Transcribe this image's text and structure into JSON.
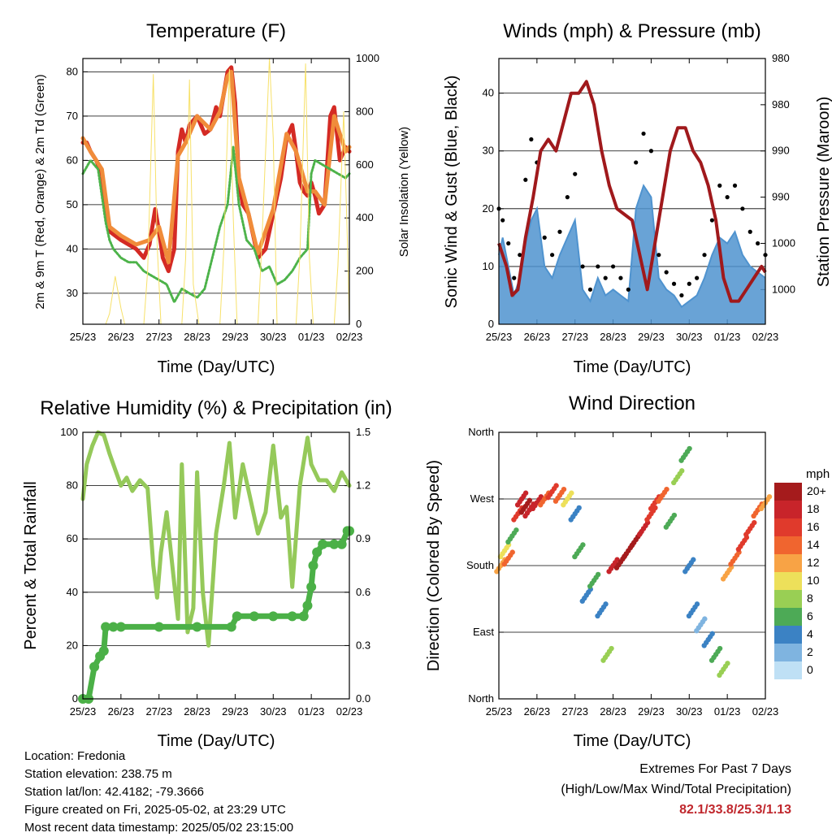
{
  "panels": {
    "temperature": {
      "title": "Temperature (F)",
      "xlabel": "Time (Day/UTC)",
      "ylabel_left": "2m & 9m T (Red, Orange) & 2m Td (Green)",
      "ylabel_right": "Solar Insolation (Yellow)"
    },
    "wind": {
      "title": "Winds (mph) & Pressure (mb)",
      "xlabel": "Time (Day/UTC)",
      "ylabel_left": "Sonic Wind & Gust (Blue, Black)",
      "ylabel_right": "Station Pressure (Maroon)"
    },
    "rh": {
      "title": "Relative Humidity (%) & Precipitation (in)",
      "xlabel": "Time (Day/UTC)",
      "ylabel_left": "Percent & Total Rainfall"
    },
    "wdir": {
      "title": "Wind Direction",
      "xlabel": "Time (Day/UTC)",
      "ylabel_left": "Direction (Colored By Speed)",
      "colorbar_title": "mph"
    }
  },
  "info": {
    "location": "Location: Fredonia",
    "elevation": "Station elevation: 238.75 m",
    "latlon": "Station lat/lon: 42.4182; -79.3666",
    "created": "Figure created on Fri, 2025-05-02, at 23:29 UTC",
    "recent": "Most recent data timestamp: 2025/05/02 23:15:00",
    "extremes_title": "Extremes For Past 7 Days",
    "extremes_subtitle": "(High/Low/Max Wind/Total Precipitation)",
    "extremes_values": "82.1/33.8/25.3/1.13"
  },
  "colors": {
    "temp_2m": "#d42a24",
    "temp_9m": "#f08c3a",
    "dewpoint": "#4db34a",
    "solar": "#f7e16a",
    "sonic_wind": "#4f93cf",
    "gust": "#000000",
    "pressure": "#a0191c",
    "rh": "#95c95a",
    "precip": "#4bb047",
    "extremes": "#c0272d"
  },
  "chart_data": [
    {
      "type": "line",
      "title": "Temperature (F)",
      "xlabel": "Time (Day/UTC)",
      "ylabel": "2m & 9m T (Red, Orange) & 2m Td (Green)",
      "y2label": "Solar Insolation (Yellow)",
      "x_ticks": [
        "25/23",
        "26/23",
        "27/23",
        "28/23",
        "29/23",
        "30/23",
        "01/23",
        "02/23"
      ],
      "xlim": [
        0,
        7
      ],
      "ylim": [
        23,
        83
      ],
      "y_ticks": [
        30,
        40,
        50,
        60,
        70,
        80
      ],
      "y2lim": [
        0,
        1000
      ],
      "y2_ticks": [
        0,
        200,
        400,
        600,
        800,
        1000
      ],
      "grid": true,
      "series": [
        {
          "name": "2m T",
          "color": "#d42a24",
          "x": [
            0,
            0.1,
            0.2,
            0.35,
            0.5,
            0.6,
            0.7,
            0.85,
            1,
            1.2,
            1.4,
            1.6,
            1.75,
            1.9,
            2.0,
            2.1,
            2.25,
            2.4,
            2.5,
            2.6,
            2.7,
            2.8,
            3.0,
            3.2,
            3.35,
            3.5,
            3.6,
            3.7,
            3.8,
            3.9,
            4.0,
            4.1,
            4.2,
            4.35,
            4.5,
            4.6,
            4.8,
            5.0,
            5.2,
            5.35,
            5.5,
            5.6,
            5.7,
            5.8,
            5.9,
            6.0,
            6.1,
            6.2,
            6.35,
            6.5,
            6.6,
            6.75,
            6.9,
            7.0
          ],
          "y": [
            64,
            64,
            62,
            60,
            57,
            50,
            44,
            43,
            42,
            41,
            40,
            38,
            41,
            49,
            44,
            38,
            35,
            40,
            62,
            67,
            64,
            68,
            70,
            66,
            67,
            72,
            70,
            75,
            80,
            81,
            73,
            55,
            50,
            48,
            42,
            38,
            40,
            48,
            56,
            65,
            68,
            62,
            55,
            53,
            52,
            55,
            52,
            48,
            50,
            70,
            72,
            60,
            63,
            62
          ]
        },
        {
          "name": "9m T",
          "color": "#f08c3a",
          "x": [
            0,
            0.2,
            0.5,
            0.7,
            1,
            1.4,
            1.75,
            2.0,
            2.25,
            2.5,
            2.7,
            3.0,
            3.35,
            3.6,
            3.8,
            3.9,
            4.1,
            4.35,
            4.6,
            5.0,
            5.35,
            5.6,
            5.9,
            6.1,
            6.35,
            6.6,
            6.9,
            7.0
          ],
          "y": [
            65,
            62,
            58,
            45,
            43,
            41,
            42,
            45,
            37,
            61,
            64,
            70,
            67,
            71,
            79,
            80,
            56,
            48,
            39,
            49,
            66,
            62,
            53,
            53,
            50,
            70,
            62,
            63
          ]
        },
        {
          "name": "2m Td",
          "color": "#4db34a",
          "x": [
            0,
            0.2,
            0.4,
            0.5,
            0.6,
            0.7,
            0.8,
            1.0,
            1.2,
            1.4,
            1.6,
            1.8,
            2.0,
            2.2,
            2.4,
            2.6,
            2.8,
            3.0,
            3.2,
            3.4,
            3.6,
            3.8,
            3.95,
            4.1,
            4.3,
            4.5,
            4.7,
            4.9,
            5.1,
            5.3,
            5.5,
            5.7,
            5.9,
            6.0,
            6.1,
            6.3,
            6.5,
            6.7,
            6.9,
            7.0
          ],
          "y": [
            57,
            60,
            58,
            52,
            46,
            42,
            40,
            38,
            37,
            37,
            35,
            34,
            33,
            32,
            28,
            31,
            30,
            29,
            31,
            38,
            45,
            50,
            63,
            50,
            42,
            40,
            35,
            36,
            32,
            33,
            35,
            38,
            40,
            57,
            60,
            59,
            58,
            57,
            56,
            57
          ]
        },
        {
          "name": "Solar Insolation",
          "color": "#f7e16a",
          "axis": "right",
          "x": [
            0,
            0.6,
            0.7,
            0.85,
            1.0,
            1.1,
            1.6,
            1.7,
            1.85,
            1.95,
            2.05,
            2.6,
            2.7,
            2.8,
            2.9,
            3.05,
            3.6,
            3.7,
            3.85,
            3.95,
            4.05,
            4.6,
            4.7,
            4.9,
            5.0,
            5.1,
            5.6,
            5.7,
            5.85,
            5.95,
            6.05,
            6.6,
            6.7,
            6.85,
            6.95,
            7.0
          ],
          "y": [
            0,
            0,
            40,
            180,
            60,
            0,
            0,
            200,
            940,
            300,
            0,
            0,
            250,
            920,
            150,
            0,
            0,
            280,
            960,
            400,
            0,
            0,
            300,
            1000,
            700,
            0,
            0,
            260,
            980,
            250,
            0,
            0,
            220,
            800,
            300,
            0
          ]
        }
      ]
    },
    {
      "type": "line",
      "title": "Winds (mph) & Pressure (mb)",
      "xlabel": "Time (Day/UTC)",
      "ylabel": "Sonic Wind & Gust (Blue, Black)",
      "y2label": "Station Pressure (Maroon)",
      "x_ticks": [
        "25/23",
        "26/23",
        "27/23",
        "28/23",
        "29/23",
        "30/23",
        "01/23",
        "02/23"
      ],
      "xlim": [
        0,
        7
      ],
      "ylim": [
        0,
        46
      ],
      "y_ticks": [
        0,
        10,
        20,
        30,
        40
      ],
      "y2_ticks": [
        "980",
        "980",
        "990",
        "990",
        "1000",
        "1000"
      ],
      "grid": true,
      "series": [
        {
          "name": "Sonic Wind",
          "color": "#4f93cf",
          "x": [
            0,
            0.1,
            0.25,
            0.4,
            0.55,
            0.7,
            0.85,
            1.0,
            1.2,
            1.4,
            1.6,
            1.8,
            2.0,
            2.2,
            2.4,
            2.6,
            2.8,
            3.0,
            3.2,
            3.4,
            3.6,
            3.8,
            4.0,
            4.2,
            4.4,
            4.6,
            4.8,
            5.0,
            5.2,
            5.4,
            5.6,
            5.8,
            6.0,
            6.2,
            6.4,
            6.6,
            6.8,
            7.0
          ],
          "y": [
            12,
            15,
            10,
            5,
            8,
            14,
            18,
            20,
            10,
            8,
            12,
            15,
            18,
            6,
            4,
            8,
            5,
            6,
            5,
            4,
            20,
            24,
            22,
            8,
            6,
            5,
            3,
            4,
            5,
            8,
            12,
            15,
            14,
            16,
            12,
            10,
            9,
            8
          ]
        },
        {
          "name": "Gust",
          "color": "#000000",
          "x": [
            0,
            0.1,
            0.25,
            0.4,
            0.55,
            0.7,
            0.85,
            1.0,
            1.2,
            1.4,
            1.6,
            1.8,
            2.0,
            2.2,
            2.4,
            2.6,
            2.8,
            3.0,
            3.2,
            3.4,
            3.6,
            3.8,
            4.0,
            4.2,
            4.4,
            4.6,
            4.8,
            5.0,
            5.2,
            5.4,
            5.6,
            5.8,
            6.0,
            6.2,
            6.4,
            6.6,
            6.8,
            7.0
          ],
          "y": [
            20,
            18,
            14,
            8,
            12,
            25,
            32,
            28,
            15,
            12,
            16,
            22,
            26,
            10,
            6,
            10,
            8,
            10,
            8,
            6,
            28,
            33,
            30,
            12,
            9,
            7,
            5,
            7,
            8,
            12,
            18,
            24,
            22,
            24,
            20,
            16,
            14,
            12
          ]
        },
        {
          "name": "Station Pressure",
          "color": "#a0191c",
          "x": [
            0,
            0.2,
            0.35,
            0.5,
            0.7,
            0.9,
            1.1,
            1.3,
            1.5,
            1.7,
            1.9,
            2.1,
            2.3,
            2.5,
            2.7,
            2.9,
            3.1,
            3.3,
            3.5,
            3.7,
            3.9,
            4.1,
            4.3,
            4.5,
            4.7,
            4.9,
            5.1,
            5.3,
            5.5,
            5.7,
            5.9,
            6.1,
            6.3,
            6.5,
            6.7,
            6.9,
            7.0
          ],
          "y": [
            14,
            10,
            5,
            6,
            15,
            22,
            30,
            32,
            30,
            35,
            40,
            40,
            42,
            38,
            30,
            24,
            20,
            19,
            18,
            12,
            6,
            14,
            22,
            30,
            34,
            34,
            30,
            28,
            24,
            18,
            8,
            4,
            4,
            6,
            8,
            10,
            9
          ]
        }
      ]
    },
    {
      "type": "line",
      "title": "Relative Humidity (%) & Precipitation (in)",
      "xlabel": "Time (Day/UTC)",
      "ylabel": "Percent & Total Rainfall",
      "x_ticks": [
        "25/23",
        "26/23",
        "27/23",
        "28/23",
        "29/23",
        "30/23",
        "01/23",
        "02/23"
      ],
      "xlim": [
        0,
        7
      ],
      "ylim": [
        0,
        100
      ],
      "y_ticks": [
        0,
        20,
        40,
        60,
        80,
        100
      ],
      "y2_ticks": [
        "0.0",
        "0.3",
        "0.6",
        "0.9",
        "1.2",
        "1.5"
      ],
      "grid": true,
      "series": [
        {
          "name": "Relative Humidity",
          "color": "#95c95a",
          "x": [
            0,
            0.1,
            0.25,
            0.4,
            0.55,
            0.7,
            0.85,
            1.0,
            1.15,
            1.3,
            1.5,
            1.7,
            1.85,
            1.95,
            2.05,
            2.2,
            2.35,
            2.5,
            2.6,
            2.75,
            2.9,
            3.0,
            3.15,
            3.3,
            3.5,
            3.7,
            3.85,
            4.0,
            4.2,
            4.4,
            4.6,
            4.8,
            5.0,
            5.2,
            5.35,
            5.5,
            5.7,
            5.9,
            6.0,
            6.2,
            6.4,
            6.6,
            6.8,
            7.0
          ],
          "y": [
            75,
            88,
            95,
            100,
            99,
            92,
            86,
            80,
            83,
            78,
            82,
            79,
            50,
            38,
            55,
            70,
            50,
            30,
            88,
            25,
            34,
            85,
            40,
            20,
            62,
            80,
            96,
            68,
            88,
            75,
            62,
            70,
            95,
            68,
            72,
            42,
            80,
            98,
            88,
            82,
            82,
            78,
            85,
            80
          ]
        },
        {
          "name": "Total Rainfall",
          "color": "#4bb047",
          "x": [
            0,
            0.15,
            0.3,
            0.45,
            0.55,
            0.6,
            0.8,
            1.0,
            2.0,
            3.0,
            3.9,
            4.05,
            4.5,
            5.0,
            5.5,
            5.8,
            5.9,
            6.0,
            6.05,
            6.15,
            6.3,
            6.6,
            6.8,
            6.95,
            7.0
          ],
          "y": [
            0,
            0,
            12,
            16,
            18,
            27,
            27,
            27,
            27,
            27,
            27,
            31,
            31,
            31,
            31,
            31,
            35,
            42,
            50,
            55,
            58,
            58,
            58,
            63,
            63
          ]
        }
      ]
    },
    {
      "type": "scatter",
      "title": "Wind Direction",
      "xlabel": "Time (Day/UTC)",
      "ylabel": "Direction (Colored By Speed)",
      "x_ticks": [
        "25/23",
        "26/23",
        "27/23",
        "28/23",
        "29/23",
        "30/23",
        "01/23",
        "02/23"
      ],
      "xlim": [
        0,
        7
      ],
      "ylim": [
        0,
        360
      ],
      "y_ticks": [
        "North",
        "East",
        "South",
        "West",
        "North"
      ],
      "grid": true,
      "colorbar": {
        "title": "mph",
        "labels": [
          "20+",
          "18",
          "16",
          "14",
          "12",
          "10",
          "8",
          "6",
          "4",
          "2",
          "0"
        ],
        "colors": [
          "#a51b1c",
          "#c8242a",
          "#e03a2c",
          "#f0652f",
          "#f8a345",
          "#ede05a",
          "#99cf54",
          "#4daa56",
          "#3b82c4",
          "#7fb4e0",
          "#bfe0f5"
        ]
      },
      "series": [
        {
          "name": "direction",
          "x": [
            0.05,
            0.15,
            0.25,
            0.35,
            0.5,
            0.6,
            0.7,
            0.8,
            1.0,
            1.2,
            1.4,
            1.6,
            1.8,
            2.0,
            2.1,
            2.3,
            2.5,
            2.7,
            2.85,
            3.0,
            3.2,
            3.4,
            3.6,
            3.8,
            4.0,
            4.1,
            4.3,
            4.5,
            4.7,
            4.9,
            5.0,
            5.1,
            5.3,
            5.5,
            5.7,
            5.9,
            6.0,
            6.2,
            6.4,
            6.6,
            6.8,
            7.0
          ],
          "y": [
            180,
            200,
            190,
            220,
            250,
            270,
            260,
            255,
            265,
            270,
            280,
            275,
            270,
            250,
            200,
            140,
            160,
            120,
            60,
            180,
            185,
            200,
            215,
            230,
            250,
            265,
            275,
            240,
            300,
            330,
            180,
            120,
            100,
            80,
            60,
            40,
            170,
            190,
            210,
            230,
            255,
            265
          ],
          "speed": [
            12,
            10,
            14,
            6,
            16,
            18,
            20,
            18,
            17,
            14,
            15,
            13,
            10,
            4,
            6,
            4,
            5,
            3,
            8,
            18,
            20,
            19,
            20,
            18,
            15,
            16,
            14,
            6,
            8,
            6,
            4,
            3,
            2,
            4,
            5,
            8,
            12,
            14,
            15,
            16,
            14,
            12
          ]
        }
      ]
    }
  ]
}
